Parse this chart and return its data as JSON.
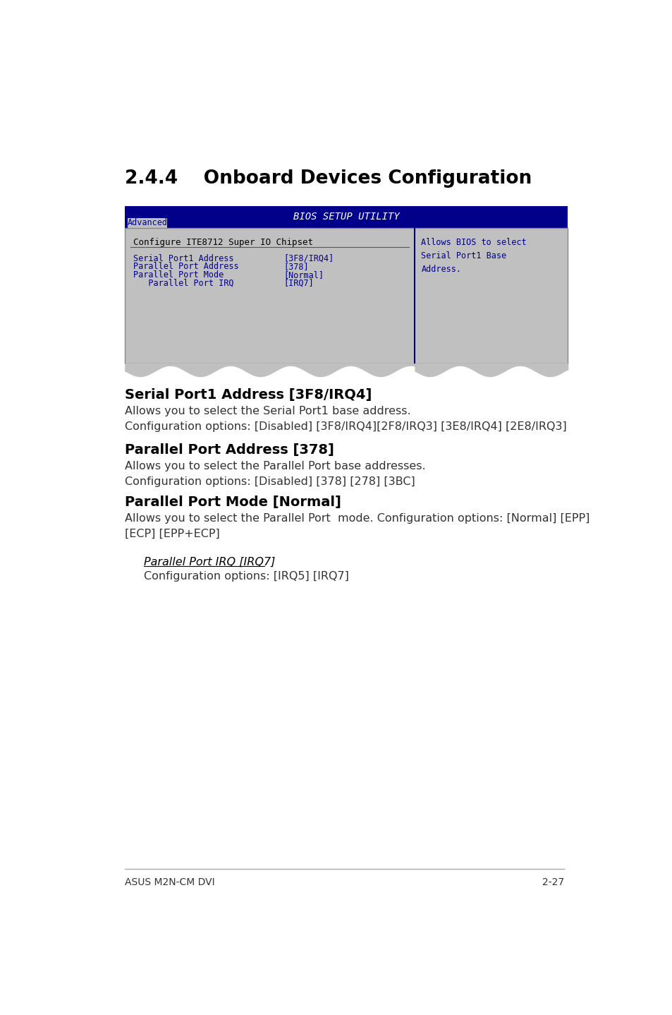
{
  "page_title": "2.4.4    Onboard Devices Configuration",
  "bios_title": "BIOS SETUP UTILITY",
  "bios_tab": "Advanced",
  "bios_section_title": "Configure ITE8712 Super IO Chipset",
  "bios_items": [
    {
      "label": "Serial Port1 Address",
      "value": "[3F8/IRQ4]",
      "indent": false
    },
    {
      "label": "Parallel Port Address",
      "value": "[378]",
      "indent": false
    },
    {
      "label": "Parallel Port Mode",
      "value": "[Normal]",
      "indent": false
    },
    {
      "label": "   Parallel Port IRQ",
      "value": "[IRQ7]",
      "indent": true
    }
  ],
  "bios_help_text": "Allows BIOS to select\nSerial Port1 Base\nAddress.",
  "section1_title": "Serial Port1 Address [3F8/IRQ4]",
  "section1_body": "Allows you to select the Serial Port1 base address.\nConfiguration options: [Disabled] [3F8/IRQ4][2F8/IRQ3] [3E8/IRQ4] [2E8/IRQ3]",
  "section2_title": "Parallel Port Address [378]",
  "section2_body": "Allows you to select the Parallel Port base addresses.\nConfiguration options: [Disabled] [378] [278] [3BC]",
  "section3_title": "Parallel Port Mode [Normal]",
  "section3_body": "Allows you to select the Parallel Port  mode. Configuration options: [Normal] [EPP]\n[ECP] [EPP+ECP]",
  "section4_subtitle": "Parallel Port IRQ [IRQ7]",
  "section4_body": "Configuration options: [IRQ5] [IRQ7]",
  "footer_left": "ASUS M2N-CM DVI",
  "footer_right": "2-27",
  "bg_color": "#ffffff",
  "bios_header_color": "#00008B",
  "bios_body_bg": "#C0C0C0",
  "bios_text_color": "#00008B",
  "bios_help_color": "#00008B"
}
